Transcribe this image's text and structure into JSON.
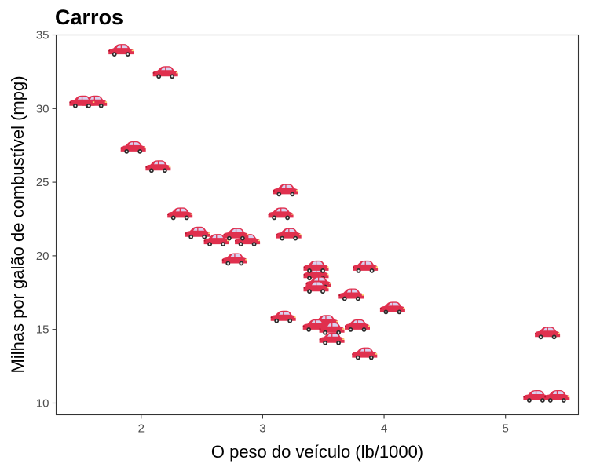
{
  "chart_data": {
    "type": "scatter",
    "title": "Carros",
    "xlabel": "O peso do veículo (lb/1000)",
    "ylabel": "Milhas por galão de combustível (mpg)",
    "xlim": [
      1.3,
      5.6
    ],
    "ylim": [
      9.2,
      35
    ],
    "xticks": [
      2,
      3,
      4,
      5
    ],
    "yticks": [
      10,
      15,
      20,
      25,
      30,
      35
    ],
    "grid": false,
    "marker_icon": "car-icon",
    "marker_color": "#e0304e",
    "points": [
      {
        "x": 2.62,
        "y": 21.0
      },
      {
        "x": 2.875,
        "y": 21.0
      },
      {
        "x": 2.32,
        "y": 22.8
      },
      {
        "x": 3.215,
        "y": 21.4
      },
      {
        "x": 3.44,
        "y": 18.7
      },
      {
        "x": 3.46,
        "y": 18.1
      },
      {
        "x": 3.57,
        "y": 14.3
      },
      {
        "x": 3.19,
        "y": 24.4
      },
      {
        "x": 3.15,
        "y": 22.8
      },
      {
        "x": 3.44,
        "y": 19.2
      },
      {
        "x": 3.44,
        "y": 17.8
      },
      {
        "x": 4.07,
        "y": 16.4
      },
      {
        "x": 3.73,
        "y": 17.3
      },
      {
        "x": 3.78,
        "y": 15.2
      },
      {
        "x": 5.25,
        "y": 10.4
      },
      {
        "x": 5.424,
        "y": 10.4
      },
      {
        "x": 5.345,
        "y": 14.7
      },
      {
        "x": 2.2,
        "y": 32.4
      },
      {
        "x": 1.615,
        "y": 30.4
      },
      {
        "x": 1.835,
        "y": 33.9
      },
      {
        "x": 2.465,
        "y": 21.5
      },
      {
        "x": 3.52,
        "y": 15.5
      },
      {
        "x": 3.435,
        "y": 15.2
      },
      {
        "x": 3.84,
        "y": 13.3
      },
      {
        "x": 3.845,
        "y": 19.2
      },
      {
        "x": 1.935,
        "y": 27.3
      },
      {
        "x": 2.14,
        "y": 26.0
      },
      {
        "x": 1.513,
        "y": 30.4
      },
      {
        "x": 3.17,
        "y": 15.8
      },
      {
        "x": 2.77,
        "y": 19.7
      },
      {
        "x": 3.57,
        "y": 15.0
      },
      {
        "x": 2.78,
        "y": 21.4
      }
    ]
  }
}
